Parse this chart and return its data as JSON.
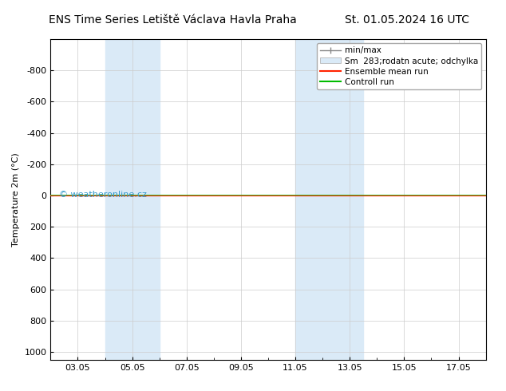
{
  "title_left": "ENS Time Series Letiště Václava Havla Praha",
  "title_right": "St. 01.05.2024 16 UTC",
  "ylabel": "Temperature 2m (°C)",
  "watermark": "© weatheronline.cz",
  "xtick_labels": [
    "03.05",
    "05.05",
    "07.05",
    "09.05",
    "11.05",
    "13.05",
    "15.05",
    "17.05"
  ],
  "xtick_positions": [
    3,
    5,
    7,
    9,
    11,
    13,
    15,
    17
  ],
  "xlim": [
    2.0,
    18.0
  ],
  "ylim_top": -1000,
  "ylim_bottom": 1050,
  "ytick_positions": [
    -800,
    -600,
    -400,
    -200,
    0,
    200,
    400,
    600,
    800,
    1000
  ],
  "ytick_labels": [
    "-800",
    "-600",
    "-400",
    "-200",
    "0",
    "200",
    "400",
    "600",
    "800",
    "1000"
  ],
  "shaded_bands": [
    {
      "x_start": 4.0,
      "x_end": 6.0,
      "color": "#daeaf7"
    },
    {
      "x_start": 11.0,
      "x_end": 13.5,
      "color": "#daeaf7"
    }
  ],
  "green_line_y": 20,
  "red_line_y": 20,
  "green_line_color": "#00bb00",
  "red_line_color": "#ff2200",
  "legend_items": [
    {
      "label": "min/max",
      "color": "#888888",
      "type": "errorbar"
    },
    {
      "label": "Sm  283;rodatn acute; odchylka",
      "color": "#daeaf7",
      "type": "patch"
    },
    {
      "label": "Ensemble mean run",
      "color": "#ff2200",
      "type": "line"
    },
    {
      "label": "Controll run",
      "color": "#00bb00",
      "type": "line"
    }
  ],
  "bg_color": "#ffffff",
  "grid_color": "#cccccc",
  "title_fontsize": 10,
  "tick_fontsize": 8,
  "legend_fontsize": 7.5,
  "ylabel_fontsize": 8,
  "watermark_fontsize": 8,
  "watermark_color": "#3399cc"
}
